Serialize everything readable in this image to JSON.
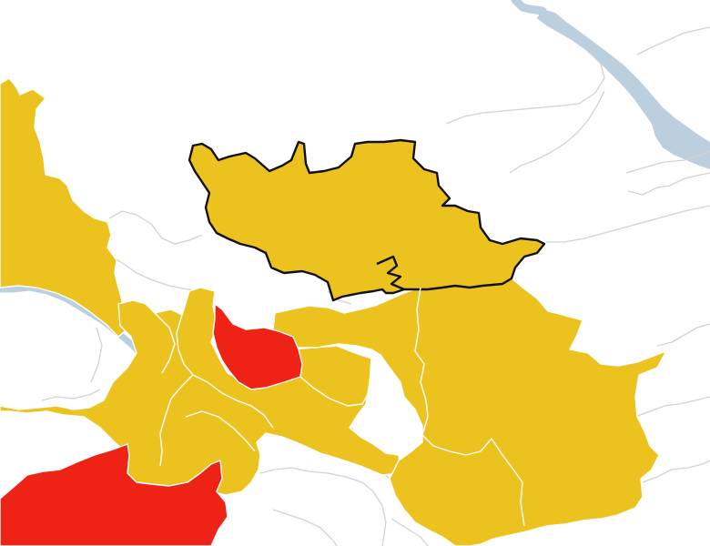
{
  "map": {
    "colors": {
      "background": "#ffffff",
      "category_yellow": "#ecc21f",
      "category_red": "#ee2316",
      "boundary_grey": "#d2d2d2",
      "region_border": "#ffffff",
      "water": "#bccfdf",
      "highlight_border": "#111111"
    },
    "legend": [],
    "regions": [
      {
        "name": "highlighted-region",
        "category": "yellow",
        "highlighted": true
      },
      {
        "name": "west-strip-region",
        "category": "yellow",
        "highlighted": false
      },
      {
        "name": "central-cluster-region",
        "category": "yellow",
        "highlighted": false
      },
      {
        "name": "central-red-region",
        "category": "red",
        "highlighted": false
      },
      {
        "name": "southwest-red-region",
        "category": "red",
        "highlighted": false
      },
      {
        "name": "east-large-region",
        "category": "yellow",
        "highlighted": false
      },
      {
        "name": "south-east-region",
        "category": "yellow",
        "highlighted": false
      }
    ]
  }
}
